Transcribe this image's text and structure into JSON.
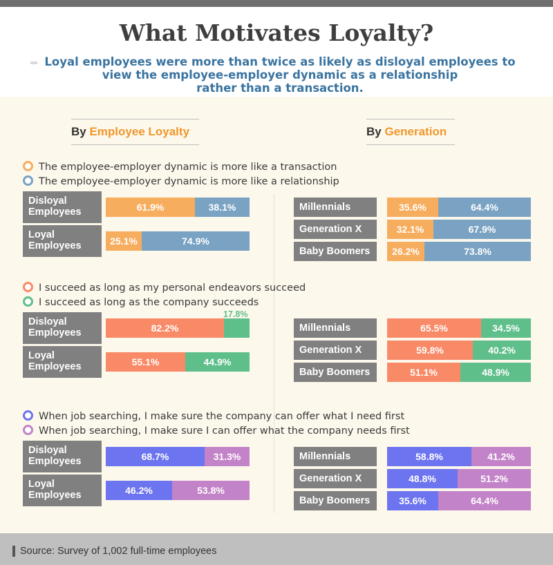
{
  "header": {
    "title": "What Motivates Loyalty?",
    "subtitle_lines": [
      "Loyal employees were more than twice as likely as disloyal employees to",
      "view the employee-employer dynamic as a relationship",
      "rather than a transaction."
    ]
  },
  "headings": {
    "loyalty_prefix": "By",
    "loyalty_highlight": "Employee Loyalty",
    "generation_prefix": "By",
    "generation_highlight": "Generation",
    "highlight_color": "#f0972b"
  },
  "footer": {
    "source": "Source: Survey of 1,002 full-time employees"
  },
  "chart_data": [
    {
      "type": "bar",
      "stacked": true,
      "orientation": "horizontal",
      "percent": true,
      "legend": [
        {
          "label": "The employee-employer dynamic is more like a transaction",
          "color": "#f7ad5e"
        },
        {
          "label": "The employee-employer dynamic is more like a relationship",
          "color": "#79a2c3"
        }
      ],
      "by_loyalty": {
        "categories": [
          "Disloyal Employees",
          "Loyal Employees"
        ],
        "label_lines": [
          [
            "Disloyal",
            "Employees"
          ],
          [
            "Loyal",
            "Employees"
          ]
        ],
        "values": [
          [
            61.9,
            38.1
          ],
          [
            25.1,
            74.9
          ]
        ],
        "labels": [
          [
            "61.9%",
            "38.1%"
          ],
          [
            "25.1%",
            "74.9%"
          ]
        ]
      },
      "by_generation": {
        "categories": [
          "Millennials",
          "Generation X",
          "Baby Boomers"
        ],
        "values": [
          [
            35.6,
            64.4
          ],
          [
            32.1,
            67.9
          ],
          [
            26.2,
            73.8
          ]
        ],
        "labels": [
          [
            "35.6%",
            "64.4%"
          ],
          [
            "32.1%",
            "67.9%"
          ],
          [
            "26.2%",
            "73.8%"
          ]
        ]
      }
    },
    {
      "type": "bar",
      "stacked": true,
      "orientation": "horizontal",
      "percent": true,
      "legend": [
        {
          "label": "I succeed as long as my personal endeavors succeed",
          "color": "#f98a67"
        },
        {
          "label": "I succeed as long as the company succeeds",
          "color": "#5fbf8b"
        }
      ],
      "by_loyalty": {
        "categories": [
          "Disloyal Employees",
          "Loyal Employees"
        ],
        "label_lines": [
          [
            "Disloyal",
            "Employees"
          ],
          [
            "Loyal",
            "Employees"
          ]
        ],
        "values": [
          [
            82.2,
            17.8
          ],
          [
            55.1,
            44.9
          ]
        ],
        "labels": [
          [
            "82.2%",
            "17.8%"
          ],
          [
            "55.1%",
            "44.9%"
          ]
        ]
      },
      "by_generation": {
        "categories": [
          "Millennials",
          "Generation X",
          "Baby Boomers"
        ],
        "values": [
          [
            65.5,
            34.5
          ],
          [
            59.8,
            40.2
          ],
          [
            51.1,
            48.9
          ]
        ],
        "labels": [
          [
            "65.5%",
            "34.5%"
          ],
          [
            "59.8%",
            "40.2%"
          ],
          [
            "51.1%",
            "48.9%"
          ]
        ]
      }
    },
    {
      "type": "bar",
      "stacked": true,
      "orientation": "horizontal",
      "percent": true,
      "legend": [
        {
          "label": "When job searching, I make sure the company can offer what I need first",
          "color": "#6c74ef"
        },
        {
          "label": "When job searching, I make sure I can offer what the company needs first",
          "color": "#c383c8"
        }
      ],
      "by_loyalty": {
        "categories": [
          "Disloyal Employees",
          "Loyal Employees"
        ],
        "label_lines": [
          [
            "Disloyal",
            "Employees"
          ],
          [
            "Loyal",
            "Employees"
          ]
        ],
        "values": [
          [
            68.7,
            31.3
          ],
          [
            46.2,
            53.8
          ]
        ],
        "labels": [
          [
            "68.7%",
            "31.3%"
          ],
          [
            "46.2%",
            "53.8%"
          ]
        ]
      },
      "by_generation": {
        "categories": [
          "Millennials",
          "Generation X",
          "Baby Boomers"
        ],
        "values": [
          [
            58.8,
            41.2
          ],
          [
            48.8,
            51.2
          ],
          [
            35.6,
            64.4
          ]
        ],
        "labels": [
          [
            "58.8%",
            "41.2%"
          ],
          [
            "48.8%",
            "51.2%"
          ],
          [
            "35.6%",
            "64.4%"
          ]
        ]
      }
    }
  ]
}
